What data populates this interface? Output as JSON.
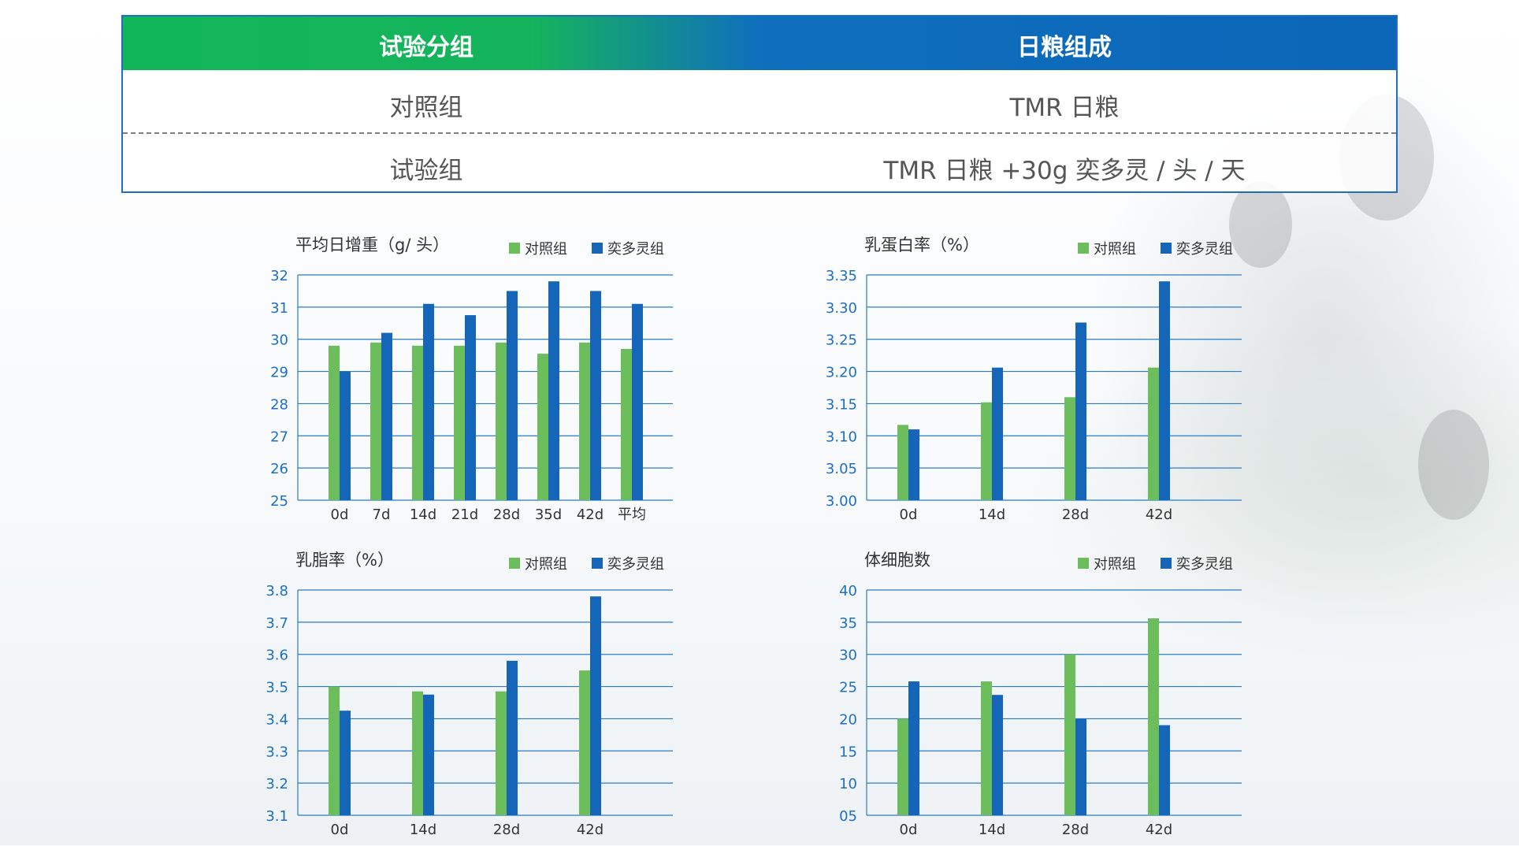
{
  "table": {
    "header": [
      "试验分组",
      "日粮组成"
    ],
    "rows": [
      [
        "对照组",
        "TMR 日粮"
      ],
      [
        "试验组",
        "TMR 日粮 +30g 奕多灵 / 头 / 天"
      ]
    ]
  },
  "colors": {
    "control": "#6cbd5b",
    "trial": "#1565b8",
    "axis_text": "#1e6fc0",
    "grid": "#2a7cc7"
  },
  "chart_data": [
    {
      "type": "bar",
      "title": "平均日增重（g/ 头）",
      "categories": [
        "0d",
        "7d",
        "14d",
        "21d",
        "28d",
        "35d",
        "42d",
        "平均"
      ],
      "series": [
        {
          "name": "对照组",
          "values": [
            29.8,
            29.9,
            29.8,
            29.8,
            29.9,
            29.55,
            29.9,
            29.7
          ]
        },
        {
          "name": "奕多灵组",
          "values": [
            29.0,
            30.2,
            31.1,
            30.75,
            31.5,
            31.8,
            31.5,
            31.1
          ]
        }
      ],
      "ylim": [
        25,
        32
      ],
      "yticks": [
        "25",
        "26",
        "27",
        "28",
        "29",
        "30",
        "31",
        "32"
      ],
      "legend": "top-right",
      "grid": true
    },
    {
      "type": "bar",
      "title": "乳蛋白率（%）",
      "categories": [
        "0d",
        "14d",
        "28d",
        "42d"
      ],
      "series": [
        {
          "name": "对照组",
          "values": [
            3.117,
            3.152,
            3.16,
            3.206
          ]
        },
        {
          "name": "奕多灵组",
          "values": [
            3.11,
            3.206,
            3.276,
            3.34
          ]
        }
      ],
      "ylim": [
        3.0,
        3.35
      ],
      "yticks": [
        "3.00",
        "3.05",
        "3.10",
        "3.15",
        "3.20",
        "3.25",
        "3.30",
        "3.35"
      ],
      "legend": "top-right",
      "grid": true
    },
    {
      "type": "bar",
      "title": "乳脂率（%）",
      "categories": [
        "0d",
        "14d",
        "28d",
        "42d"
      ],
      "series": [
        {
          "name": "对照组",
          "values": [
            3.5,
            3.485,
            3.485,
            3.55
          ]
        },
        {
          "name": "奕多灵组",
          "values": [
            3.425,
            3.475,
            3.58,
            3.78
          ]
        }
      ],
      "ylim": [
        3.1,
        3.8
      ],
      "yticks": [
        "3.1",
        "3.2",
        "3.3",
        "3.4",
        "3.5",
        "3.6",
        "3.7",
        "3.8"
      ],
      "legend": "top-right",
      "grid": true
    },
    {
      "type": "bar",
      "title": "体细胞数",
      "categories": [
        "0d",
        "14d",
        "28d",
        "42d"
      ],
      "series": [
        {
          "name": "对照组",
          "values": [
            20,
            25.8,
            30,
            35.6
          ]
        },
        {
          "name": "奕多灵组",
          "values": [
            25.8,
            23.7,
            20,
            19
          ]
        }
      ],
      "ylim": [
        5,
        40
      ],
      "yticks": [
        "05",
        "10",
        "15",
        "20",
        "25",
        "30",
        "35",
        "40"
      ],
      "legend": "top-right",
      "grid": true
    }
  ]
}
